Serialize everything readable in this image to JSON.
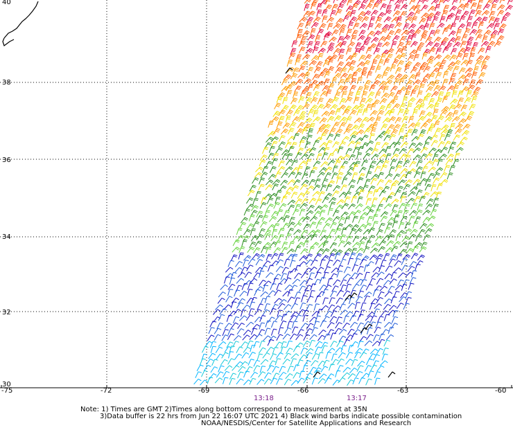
{
  "map": {
    "lat_labels": [
      "40",
      "38",
      "36",
      "34",
      "32",
      "30"
    ],
    "lon_labels": [
      "-75",
      "-72",
      "-69",
      "-66",
      "-63",
      "-60"
    ],
    "pass_times": [
      "13:18",
      "13:17"
    ],
    "legend_speed_colors": [
      "#2a8c1e",
      "#63d13a",
      "#f0e000",
      "#ffd200",
      "#ff9a00",
      "#ff5a00",
      "#e0003a"
    ],
    "swath_color_bands": [
      "#1e5ad8",
      "#1010c0",
      "#00b4ff",
      "#12c8d8",
      "#2a8c1e",
      "#63d13a",
      "#f0e000",
      "#ff9a00",
      "#ff5a00",
      "#e0003a"
    ]
  },
  "notes": {
    "line1": "Note: 1) Times are GMT 2)Times along bottom correspond to measurement at 35N",
    "line2": "3)Data buffer is 22 hrs from Jun 22 16:07 UTC 2021 4) Black wind barbs indicate possible contamination",
    "line3": "NOAA/NESDIS/Center for Satellite Applications and Research"
  }
}
